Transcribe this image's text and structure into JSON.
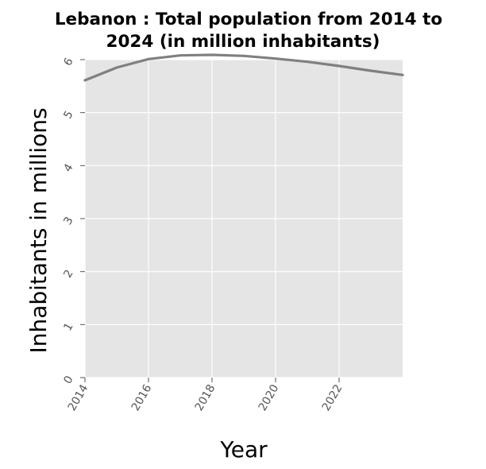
{
  "chart_data": {
    "type": "line",
    "title_lines": [
      "Lebanon : Total population from 2014 to",
      "2024 (in million inhabitants)"
    ],
    "xlabel": "Year",
    "ylabel": "Inhabitants in millions",
    "xlim": [
      2014,
      2024
    ],
    "ylim": [
      0,
      6
    ],
    "x_ticks": [
      2014,
      2016,
      2018,
      2020,
      2022
    ],
    "y_ticks": [
      0,
      1,
      2,
      3,
      4,
      5,
      6
    ],
    "grid": true,
    "series": [
      {
        "color": "#808080",
        "x": [
          2014,
          2015,
          2016,
          2017,
          2018,
          2019,
          2020,
          2021,
          2022,
          2023,
          2024
        ],
        "y": [
          5.61,
          5.85,
          6.01,
          6.08,
          6.09,
          6.07,
          6.02,
          5.96,
          5.88,
          5.79,
          5.71
        ]
      }
    ],
    "colors": {
      "plot_background": "#e5e5e5",
      "grid": "#ffffff",
      "line": "#808080"
    }
  }
}
